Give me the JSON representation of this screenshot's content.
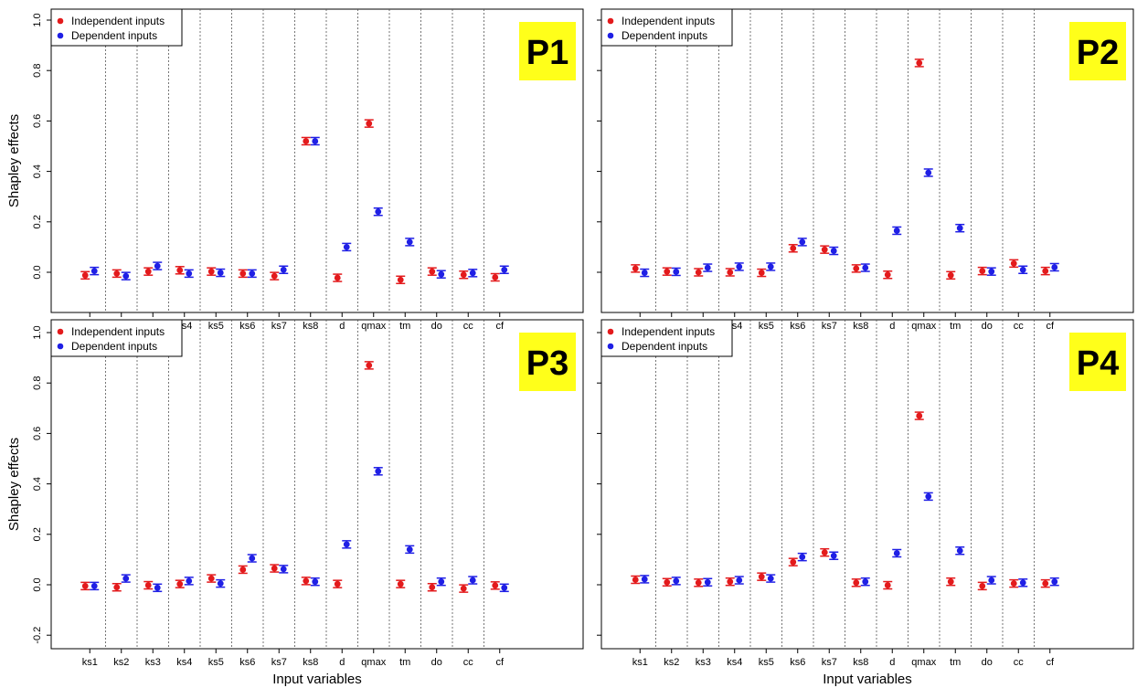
{
  "chart_data": [
    {
      "type": "scatter",
      "panel": "P1",
      "categories": [
        "ks1",
        "ks2",
        "ks3",
        "ks4",
        "ks5",
        "ks6",
        "ks7",
        "ks8",
        "d",
        "qmax",
        "tm",
        "do",
        "cc",
        "cf"
      ],
      "ylabel": "Shapley effects",
      "xlabel": "",
      "yticks": [
        "0.0",
        "0.2",
        "0.4",
        "0.6",
        "0.8",
        "1.0"
      ],
      "legend": "top-left",
      "series": [
        {
          "name": "Independent inputs",
          "color": "#e31a1c",
          "values": [
            -0.012,
            -0.005,
            0.003,
            0.008,
            0.003,
            -0.005,
            -0.015,
            0.52,
            -0.022,
            0.59,
            -0.03,
            0.003,
            -0.01,
            -0.02
          ]
        },
        {
          "name": "Dependent inputs",
          "color": "#1f1fe5",
          "values": [
            0.005,
            -0.015,
            0.025,
            -0.005,
            -0.002,
            -0.005,
            0.01,
            0.52,
            0.1,
            0.24,
            0.12,
            -0.008,
            -0.003,
            0.01
          ]
        }
      ]
    },
    {
      "type": "scatter",
      "panel": "P2",
      "categories": [
        "ks1",
        "ks2",
        "ks3",
        "ks4",
        "ks5",
        "ks6",
        "ks7",
        "ks8",
        "d",
        "qmax",
        "tm",
        "do",
        "cc",
        "cf"
      ],
      "ylabel": "",
      "xlabel": "",
      "yticks": [],
      "legend": "top-left",
      "series": [
        {
          "name": "Independent inputs",
          "color": "#e31a1c",
          "values": [
            0.015,
            0.003,
            0.0,
            0.0,
            -0.002,
            0.095,
            0.09,
            0.015,
            -0.01,
            0.83,
            -0.012,
            0.005,
            0.035,
            0.005
          ]
        },
        {
          "name": "Dependent inputs",
          "color": "#1f1fe5",
          "values": [
            -0.002,
            0.002,
            0.018,
            0.022,
            0.022,
            0.12,
            0.085,
            0.018,
            0.165,
            0.395,
            0.175,
            0.003,
            0.01,
            0.02
          ]
        }
      ]
    },
    {
      "type": "scatter",
      "panel": "P3",
      "categories": [
        "ks1",
        "ks2",
        "ks3",
        "ks4",
        "ks5",
        "ks6",
        "ks7",
        "ks8",
        "d",
        "qmax",
        "tm",
        "do",
        "cc",
        "cf"
      ],
      "ylabel": "Shapley effects",
      "xlabel": "Input variables",
      "yticks": [
        "-0.2",
        "0.0",
        "0.2",
        "0.4",
        "0.6",
        "0.8",
        "1.0"
      ],
      "legend": "top-left",
      "series": [
        {
          "name": "Independent inputs",
          "color": "#e31a1c",
          "values": [
            -0.005,
            -0.01,
            -0.002,
            0.003,
            0.025,
            0.06,
            0.065,
            0.015,
            0.003,
            0.87,
            0.003,
            -0.01,
            -0.015,
            -0.003
          ]
        },
        {
          "name": "Dependent inputs",
          "color": "#1f1fe5",
          "values": [
            -0.005,
            0.025,
            -0.012,
            0.015,
            0.005,
            0.105,
            0.062,
            0.012,
            0.16,
            0.45,
            0.14,
            0.012,
            0.018,
            -0.012
          ]
        }
      ]
    },
    {
      "type": "scatter",
      "panel": "P4",
      "categories": [
        "ks1",
        "ks2",
        "ks3",
        "ks4",
        "ks5",
        "ks6",
        "ks7",
        "ks8",
        "d",
        "qmax",
        "tm",
        "do",
        "cc",
        "cf"
      ],
      "ylabel": "",
      "xlabel": "Input variables",
      "yticks": [],
      "legend": "top-left",
      "series": [
        {
          "name": "Independent inputs",
          "color": "#e31a1c",
          "values": [
            0.02,
            0.01,
            0.008,
            0.012,
            0.032,
            0.09,
            0.128,
            0.008,
            -0.002,
            0.67,
            0.012,
            -0.005,
            0.005,
            0.005
          ]
        },
        {
          "name": "Dependent inputs",
          "color": "#1f1fe5",
          "values": [
            0.022,
            0.015,
            0.01,
            0.018,
            0.025,
            0.11,
            0.115,
            0.012,
            0.125,
            0.35,
            0.135,
            0.018,
            0.008,
            0.012
          ]
        }
      ]
    }
  ]
}
